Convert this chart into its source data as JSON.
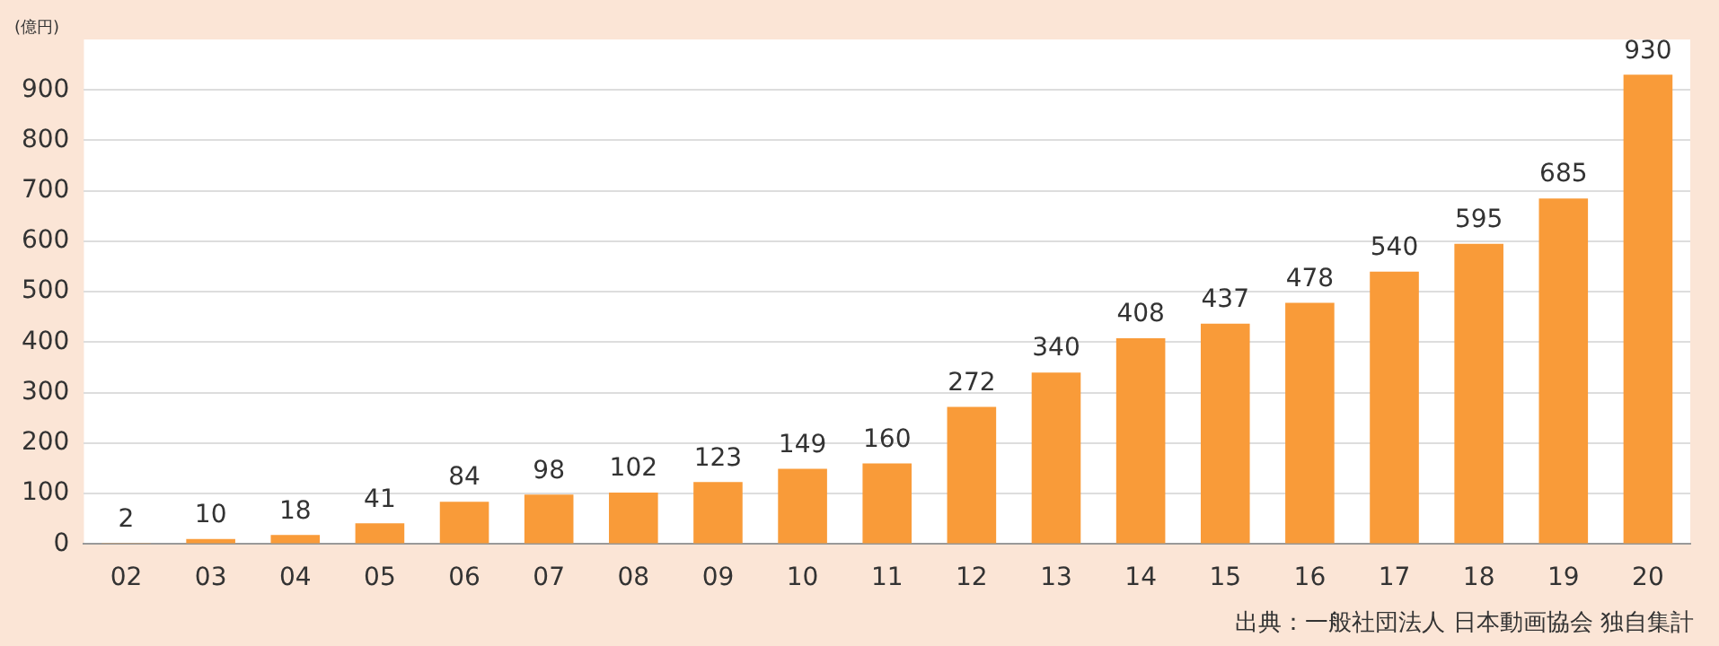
{
  "chart_data": {
    "type": "bar",
    "ylabel": "(億円)",
    "categories": [
      "02",
      "03",
      "04",
      "05",
      "06",
      "07",
      "08",
      "09",
      "10",
      "11",
      "12",
      "13",
      "14",
      "15",
      "16",
      "17",
      "18",
      "19",
      "20"
    ],
    "values": [
      2,
      10,
      18,
      41,
      84,
      98,
      102,
      123,
      149,
      160,
      272,
      340,
      408,
      437,
      478,
      540,
      595,
      685,
      930
    ],
    "color": "#f99b39",
    "ylim": [
      0,
      1000
    ],
    "yticks": [
      0,
      100,
      200,
      300,
      400,
      500,
      600,
      700,
      800,
      900
    ],
    "grid": "y",
    "data_labels": true,
    "annotations": [
      "出典：一般社団法人 日本動画協会 独自集計"
    ]
  }
}
